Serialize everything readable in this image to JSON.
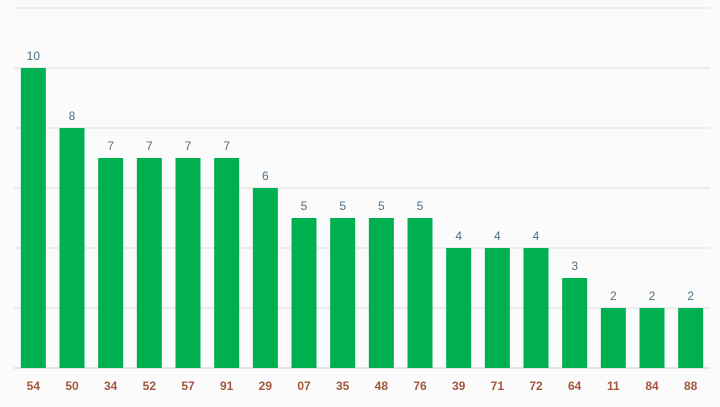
{
  "chart_data": {
    "type": "bar",
    "categories": [
      "54",
      "50",
      "34",
      "52",
      "57",
      "91",
      "29",
      "07",
      "35",
      "48",
      "76",
      "39",
      "71",
      "72",
      "64",
      "11",
      "84",
      "88"
    ],
    "values": [
      10,
      8,
      7,
      7,
      7,
      7,
      6,
      5,
      5,
      5,
      5,
      4,
      4,
      4,
      3,
      2,
      2,
      2
    ],
    "ylim": [
      0,
      12
    ],
    "grid": true,
    "data_labels": true,
    "colors": {
      "bar": "#00b050",
      "value_label": "#4e6f86",
      "category_label": "#a0573c"
    }
  }
}
